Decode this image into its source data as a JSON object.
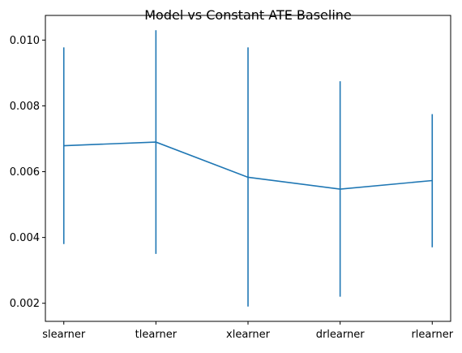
{
  "chart_data": {
    "type": "line",
    "title": "Model vs Constant ATE Baseline",
    "xlabel": "",
    "ylabel": "",
    "categories": [
      "slearner",
      "tlearner",
      "xlearner",
      "drlearner",
      "rlearner"
    ],
    "series": [
      {
        "values": [
          0.00679,
          0.0069,
          0.00583,
          0.00547,
          0.00573
        ],
        "error_low": [
          0.0038,
          0.0035,
          0.0019,
          0.0022,
          0.0037
        ],
        "error_high": [
          0.00978,
          0.0103,
          0.00978,
          0.00875,
          0.00775
        ]
      }
    ],
    "ylim": [
      0.00145,
      0.01075
    ],
    "yticks": [
      0.002,
      0.004,
      0.006,
      0.008,
      0.01
    ],
    "ytick_labels": [
      "0.002",
      "0.004",
      "0.006",
      "0.008",
      "0.010"
    ],
    "grid": false,
    "line_color": "#1f77b4"
  }
}
